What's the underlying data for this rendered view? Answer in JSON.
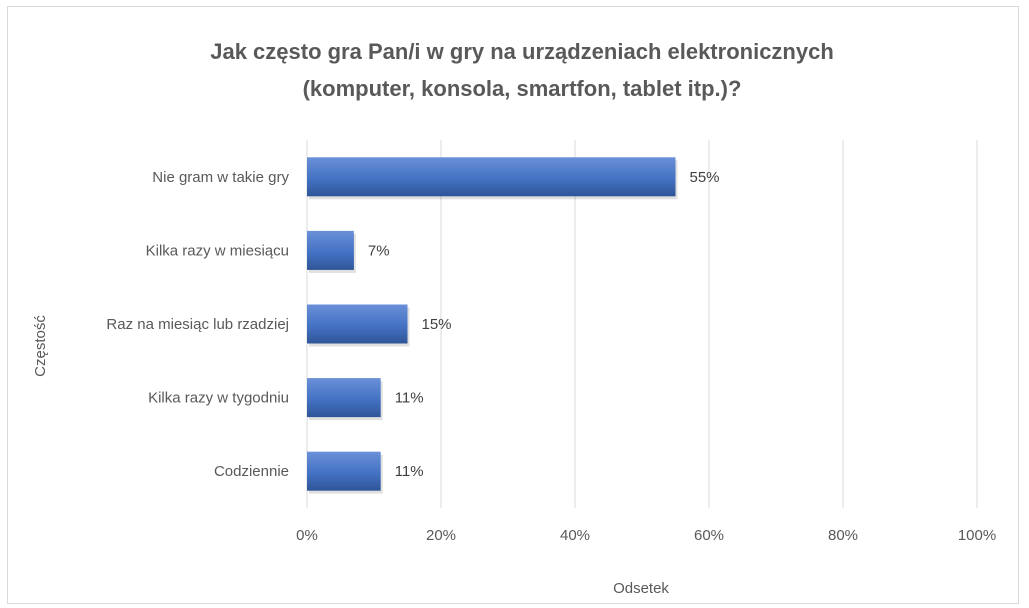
{
  "chart_data": {
    "type": "bar",
    "orientation": "horizontal",
    "title": "Jak często gra Pan/i w gry na urządzeniach elektronicznych (komputer, konsola, smartfon, tablet itp.)?",
    "title_lines": [
      "Jak często gra Pan/i w gry na urządzeniach elektronicznych",
      "(komputer, konsola, smartfon, tablet itp.)?"
    ],
    "categories": [
      "Nie gram w takie gry",
      "Kilka razy w miesiącu",
      "Raz na miesiąc lub rzadziej",
      "Kilka razy w tygodniu",
      "Codziennie"
    ],
    "values": [
      55,
      7,
      15,
      11,
      11
    ],
    "data_labels": [
      "55%",
      "7%",
      "15%",
      "11%",
      "11%"
    ],
    "xlabel": "Odsetek",
    "ylabel": "Częstość",
    "xlim": [
      0,
      100
    ],
    "ticks": [
      "0%",
      "20%",
      "40%",
      "60%",
      "80%",
      "100%"
    ],
    "tick_values": [
      0,
      20,
      40,
      60,
      80,
      100
    ],
    "grid": true,
    "legend": "none",
    "colors": {
      "bar": "#4472c4",
      "bar_light": "#6a90d8",
      "bar_dark": "#2f5597",
      "grid": "#d9d9d9",
      "text": "#595959"
    }
  }
}
